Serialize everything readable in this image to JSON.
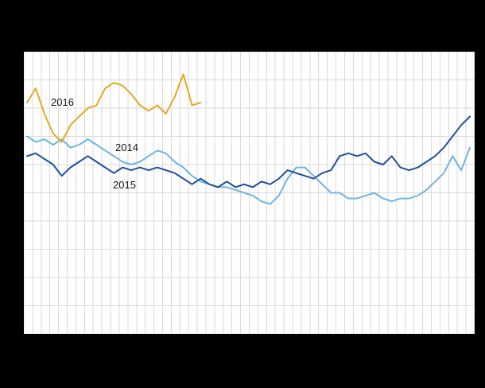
{
  "page": {
    "background_color": "#000000"
  },
  "plot": {
    "background_color": "#ffffff",
    "grid_color": "#d9d9d9"
  },
  "chart_data": {
    "type": "line",
    "x_unit": "week",
    "x_range": [
      1,
      52
    ],
    "ylim": [
      0,
      100
    ],
    "y_scale_note": "no axis tick labels visible in image; values estimated as percent of plot height",
    "grid": {
      "vertical_lines": 53,
      "horizontal_lines": 11,
      "visible": true
    },
    "legend_position": "inline-labels-on-lines",
    "series": [
      {
        "name": "2014",
        "color": "#6fb4e3",
        "start_week": 1,
        "values": [
          70,
          68,
          69,
          67,
          69,
          66,
          67,
          69,
          67,
          65,
          63,
          61,
          60,
          61,
          63,
          65,
          64,
          61,
          59,
          56,
          54,
          53,
          52,
          52,
          51,
          50,
          49,
          47,
          46,
          49,
          55,
          59,
          59,
          56,
          53,
          50,
          50,
          48,
          48,
          49,
          50,
          48,
          47,
          48,
          48,
          49,
          51,
          54,
          57,
          63,
          58,
          66
        ]
      },
      {
        "name": "2015",
        "color": "#1e4f9e",
        "start_week": 1,
        "values": [
          63,
          64,
          62,
          60,
          56,
          59,
          61,
          63,
          61,
          59,
          57,
          59,
          58,
          59,
          58,
          59,
          58,
          57,
          55,
          53,
          55,
          53,
          52,
          54,
          52,
          53,
          52,
          54,
          53,
          55,
          58,
          57,
          56,
          55,
          57,
          58,
          63,
          64,
          63,
          64,
          61,
          60,
          63,
          59,
          58,
          59,
          61,
          63,
          66,
          70,
          74,
          77
        ]
      },
      {
        "name": "2016",
        "color": "#e2a925",
        "start_week": 1,
        "values": [
          82,
          87,
          78,
          71,
          68,
          74,
          77,
          80,
          81,
          87,
          89,
          88,
          85,
          81,
          79,
          81,
          78,
          84,
          92,
          81,
          82
        ]
      }
    ]
  }
}
